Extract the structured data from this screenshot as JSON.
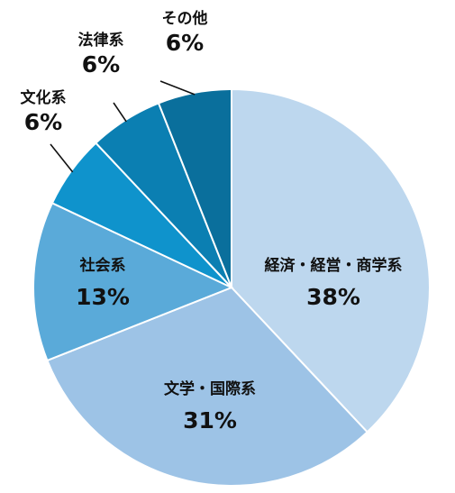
{
  "chart_data": {
    "type": "pie",
    "title": "",
    "start_angle_deg": 0,
    "direction": "clockwise",
    "categories": [
      "経済・経営・商学系",
      "文学・国際系",
      "社会系",
      "文化系",
      "法律系",
      "その他"
    ],
    "values": [
      38,
      31,
      13,
      6,
      6,
      6
    ],
    "value_labels": [
      "38%",
      "31%",
      "13%",
      "6%",
      "6%",
      "6%"
    ],
    "colors": [
      "#bdd7ee",
      "#9dc3e6",
      "#5aaad9",
      "#0f93cc",
      "#0b7fb2",
      "#0a6f9c"
    ],
    "label_positions": [
      "inside",
      "inside",
      "inside",
      "outside",
      "outside",
      "outside"
    ]
  }
}
